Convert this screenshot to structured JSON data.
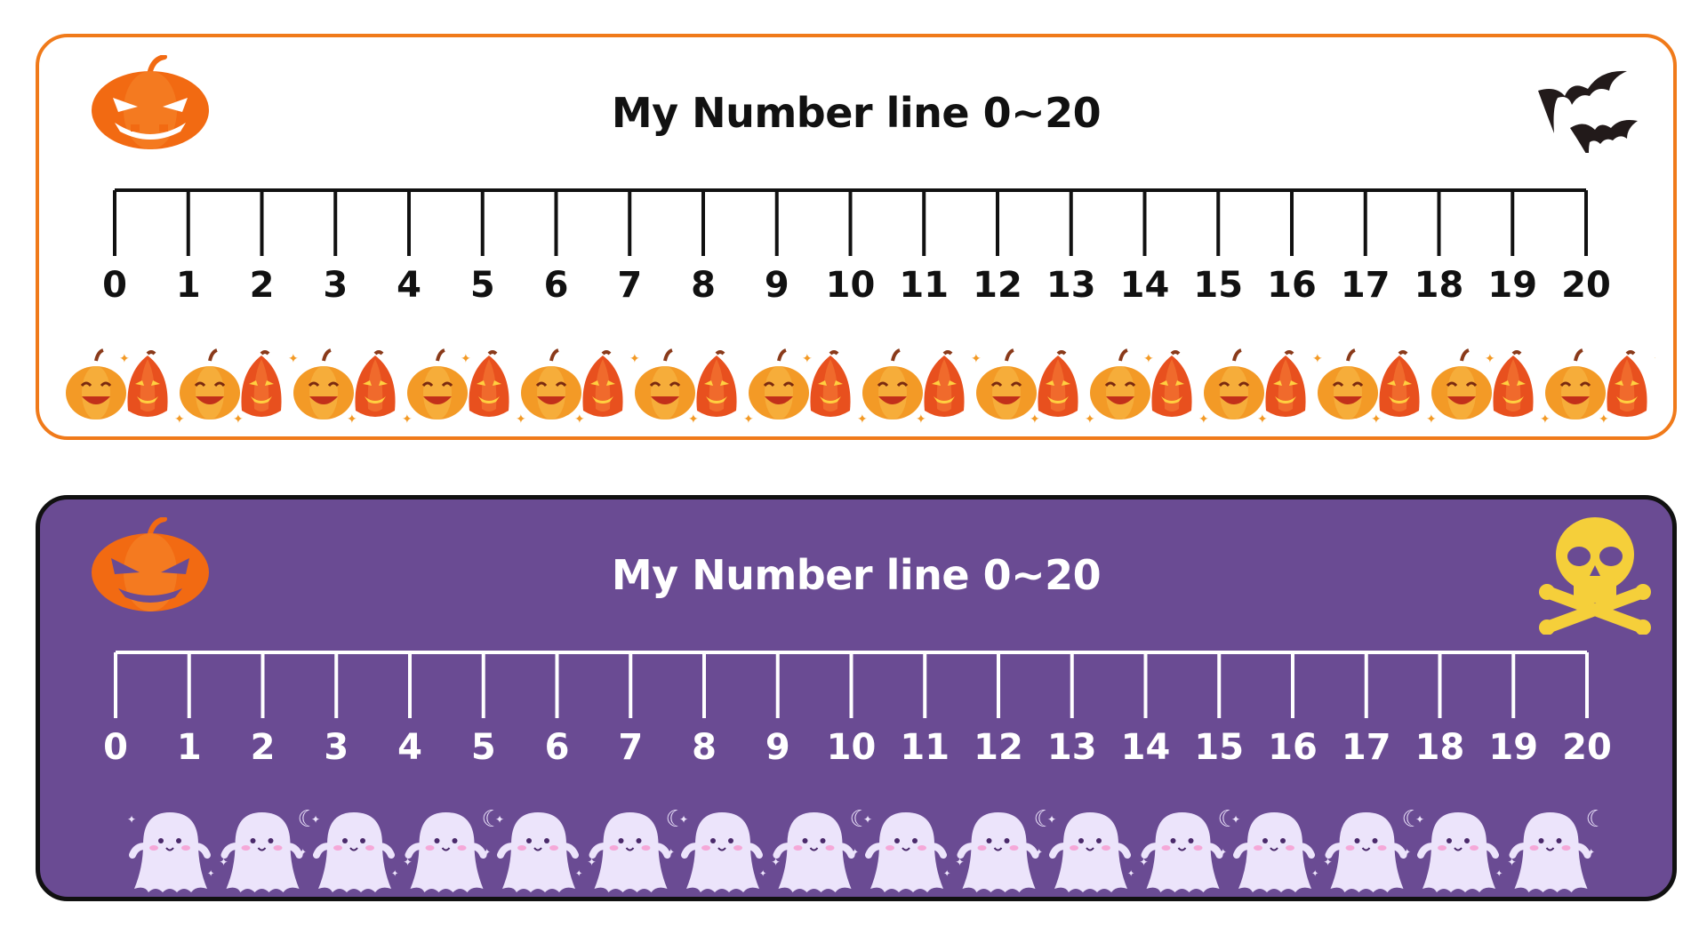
{
  "cards": [
    {
      "title": "My Number line 0~20",
      "theme": "orange-white",
      "background": "#ffffff",
      "border_color": "#f07a1a",
      "text_color": "#111111",
      "left_icon": "pumpkin-icon",
      "right_icon": "bats-icon",
      "border_decoration": "pumpkins-row"
    },
    {
      "title": "My Number line 0~20",
      "theme": "purple",
      "background": "#6a4b93",
      "border_color": "#111111",
      "text_color": "#ffffff",
      "left_icon": "pumpkin-icon",
      "right_icon": "skull-crossbones-icon",
      "border_decoration": "ghosts-row"
    }
  ],
  "number_line": {
    "ticks": [
      "0",
      "1",
      "2",
      "3",
      "4",
      "5",
      "6",
      "7",
      "8",
      "9",
      "10",
      "11",
      "12",
      "13",
      "14",
      "15",
      "16",
      "17",
      "18",
      "19",
      "20"
    ]
  }
}
